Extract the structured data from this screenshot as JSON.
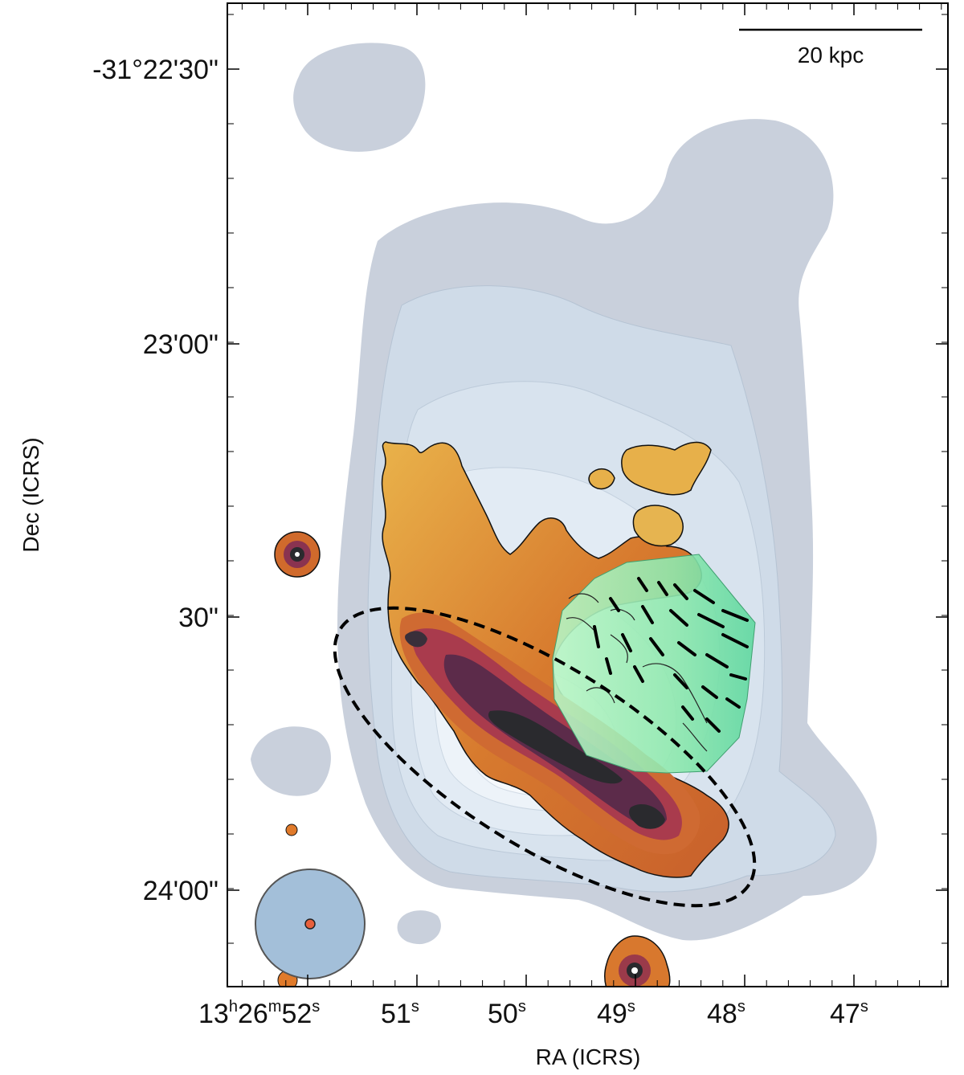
{
  "figure": {
    "scale_bar_label": "20 kpc",
    "y_axis_label": "Dec (ICRS)",
    "x_axis_label": "RA (ICRS)",
    "y_ticks": [
      "-31°22'30\"",
      "23'00\"",
      "30\"",
      "24'00\""
    ],
    "x_ticks": [
      {
        "h": "13",
        "hs": "h",
        "m": "26",
        "ms": "m",
        "s": "52",
        "ss": "s",
        "first": true
      },
      {
        "s": "51",
        "ss": "s"
      },
      {
        "s": "50",
        "ss": "s"
      },
      {
        "s": "49",
        "ss": "s"
      },
      {
        "s": "48",
        "ss": "s"
      },
      {
        "s": "47",
        "ss": "s"
      }
    ]
  },
  "colors": {
    "outer_radio": "#c9d0dc",
    "inner_radio_1": "#cfdbe8",
    "inner_radio_2": "#dae5f0",
    "inner_radio_3": "#e6eef6",
    "inner_radio_4": "#f0f5fa",
    "halpha_outer": "#e0a040",
    "halpha_mid": "#d06a2c",
    "halpha_inner": "#a83a48",
    "halpha_core": "#5c2a48",
    "halpha_dark": "#2a2a2e",
    "green_region": "#9ff0b4",
    "beam_fill": "#a3bfd9",
    "beam_dot": "#e8603c"
  }
}
